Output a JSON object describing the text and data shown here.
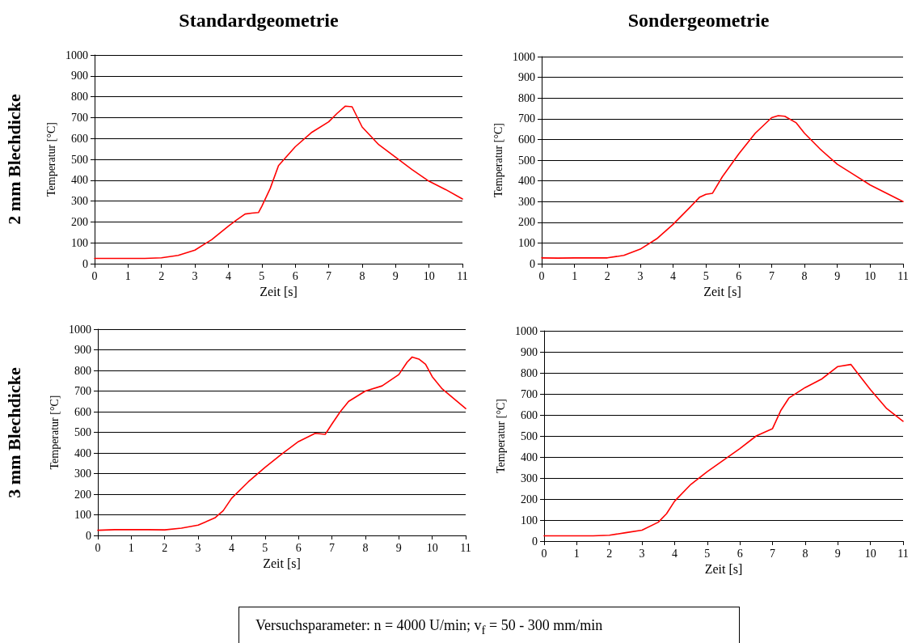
{
  "chart_data": [
    {
      "type": "line",
      "title": "Standardgeometrie",
      "xlabel": "Zeit [s]",
      "ylabel": "Temperatur [°C]",
      "annotations": [
        "2 mm Blechdicke"
      ],
      "x": [
        0,
        0.5,
        1,
        1.5,
        2,
        2.5,
        3,
        3.5,
        4,
        4.25,
        4.5,
        4.7,
        4.9,
        5,
        5.25,
        5.5,
        6,
        6.5,
        7,
        7.25,
        7.5,
        7.7,
        8,
        8.5,
        9,
        9.5,
        10,
        10.5,
        11
      ],
      "series": [
        {
          "color": "#ff0000",
          "values": [
            25,
            25,
            25,
            25,
            28,
            40,
            65,
            115,
            180,
            210,
            238,
            242,
            245,
            275,
            360,
            470,
            560,
            630,
            680,
            720,
            755,
            752,
            655,
            570,
            510,
            450,
            395,
            355,
            310
          ]
        }
      ],
      "xlim": [
        0,
        11
      ],
      "xticks": [
        0,
        1,
        2,
        3,
        4,
        5,
        6,
        7,
        8,
        9,
        10,
        11
      ],
      "ylim": [
        0,
        1000
      ],
      "yticks": [
        0,
        100,
        200,
        300,
        400,
        500,
        600,
        700,
        800,
        900,
        1000
      ],
      "grid": "y",
      "marker": "none",
      "line_style": "solid"
    },
    {
      "type": "line",
      "title": "Sondergeometrie",
      "xlabel": "Zeit [s]",
      "ylabel": "Temperatur [°C]",
      "x": [
        0,
        0.5,
        1,
        1.5,
        2,
        2.5,
        3,
        3.5,
        4,
        4.5,
        4.8,
        5,
        5.2,
        5.5,
        6,
        6.5,
        7,
        7.2,
        7.4,
        7.75,
        8,
        8.5,
        9,
        9.5,
        10,
        10.5,
        11
      ],
      "series": [
        {
          "color": "#ff0000",
          "values": [
            28,
            27,
            28,
            28,
            28,
            40,
            70,
            120,
            190,
            270,
            320,
            335,
            340,
            420,
            530,
            630,
            705,
            715,
            712,
            680,
            630,
            550,
            480,
            430,
            380,
            340,
            300
          ]
        }
      ],
      "xlim": [
        0,
        11
      ],
      "xticks": [
        0,
        1,
        2,
        3,
        4,
        5,
        6,
        7,
        8,
        9,
        10,
        11
      ],
      "ylim": [
        0,
        1000
      ],
      "yticks": [
        0,
        100,
        200,
        300,
        400,
        500,
        600,
        700,
        800,
        900,
        1000
      ],
      "grid": "y",
      "marker": "none",
      "line_style": "solid"
    },
    {
      "type": "line",
      "xlabel": "Zeit [s]",
      "ylabel": "Temperatur [°C]",
      "annotations": [
        "3 mm Blechdicke",
        "Versuchsparameter: n = 4000 U/min; v$_{f}$ = 50 - 300 mm/min"
      ],
      "x": [
        0,
        0.5,
        1,
        1.5,
        2,
        2.5,
        3,
        3.5,
        3.75,
        4,
        4.5,
        5,
        5.5,
        6,
        6.5,
        6.8,
        7,
        7.25,
        7.5,
        8,
        8.5,
        9,
        9.25,
        9.4,
        9.6,
        9.8,
        10,
        10.3,
        11
      ],
      "series": [
        {
          "color": "#ff0000",
          "values": [
            25,
            28,
            28,
            28,
            27,
            35,
            50,
            85,
            120,
            180,
            260,
            330,
            395,
            455,
            495,
            490,
            540,
            600,
            650,
            700,
            725,
            780,
            840,
            865,
            855,
            830,
            770,
            710,
            615
          ]
        }
      ],
      "xlim": [
        0,
        11
      ],
      "xticks": [
        0,
        1,
        2,
        3,
        4,
        5,
        6,
        7,
        8,
        9,
        10,
        11
      ],
      "ylim": [
        0,
        1000
      ],
      "yticks": [
        0,
        100,
        200,
        300,
        400,
        500,
        600,
        700,
        800,
        900,
        1000
      ],
      "grid": "y",
      "marker": "none",
      "line_style": "solid"
    },
    {
      "type": "line",
      "xlabel": "Zeit [s]",
      "ylabel": "Temperatur [°C]",
      "x": [
        0,
        0.5,
        1,
        1.5,
        2,
        2.5,
        3,
        3.5,
        3.75,
        4,
        4.5,
        5,
        5.5,
        6,
        6.5,
        7,
        7.25,
        7.5,
        8,
        8.5,
        9,
        9.4,
        9.6,
        10,
        10.5,
        11
      ],
      "series": [
        {
          "color": "#ff0000",
          "values": [
            25,
            25,
            25,
            25,
            28,
            40,
            52,
            90,
            130,
            190,
            270,
            330,
            385,
            440,
            500,
            535,
            620,
            680,
            730,
            770,
            830,
            840,
            800,
            720,
            630,
            570
          ]
        }
      ],
      "xlim": [
        0,
        11
      ],
      "xticks": [
        0,
        1,
        2,
        3,
        4,
        5,
        6,
        7,
        8,
        9,
        10,
        11
      ],
      "ylim": [
        0,
        1000
      ],
      "yticks": [
        0,
        100,
        200,
        300,
        400,
        500,
        600,
        700,
        800,
        900,
        1000
      ],
      "grid": "y",
      "marker": "none",
      "line_style": "solid"
    }
  ]
}
